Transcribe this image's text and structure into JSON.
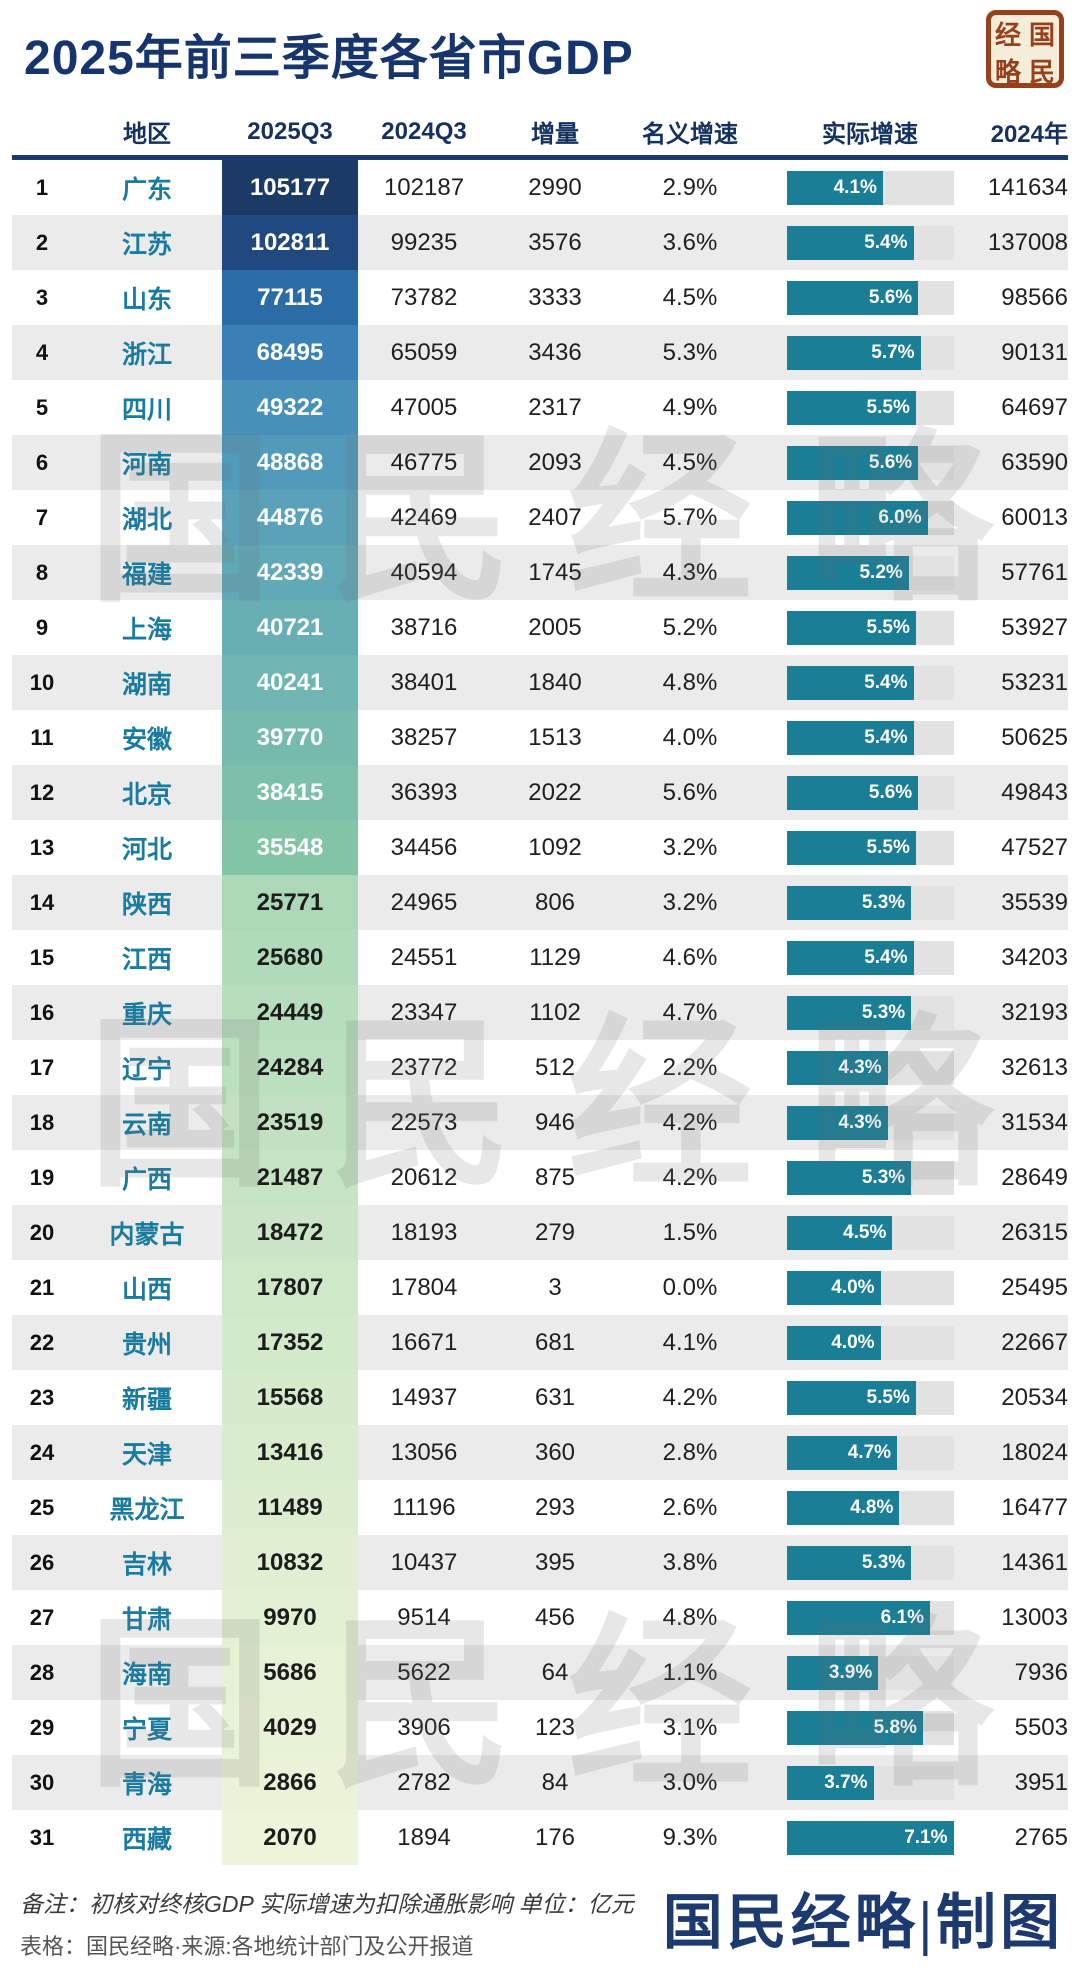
{
  "title": "2025年前三季度各省市GDP",
  "watermark": "国民经略",
  "seal": {
    "chars": [
      "经",
      "国",
      "略",
      "民"
    ]
  },
  "footer": {
    "note1": "备注：初核对终核GDP 实际增速为扣除通胀影响 单位：亿元",
    "note2": "表格：国民经略·来源:各地统计部门及公开报道",
    "credit": "国民经略|制图"
  },
  "colors": {
    "title_navy": "#16356d",
    "header_underline": "#1c3a6e",
    "region_teal": "#1a7ba1",
    "bar_fill": "#1a7e96",
    "bar_track": "#e2e2e2",
    "row_alt": "#ebebeb",
    "seal_red": "#96411c",
    "q3_dark_text_from_rank": 14,
    "q3_colors": [
      "#1c3a66",
      "#20497f",
      "#2c6ca6",
      "#3a80b6",
      "#4790ba",
      "#519abb",
      "#59a2b9",
      "#61a9b7",
      "#68afb4",
      "#6fb5b1",
      "#76baae",
      "#7cbfaa",
      "#83c4a6",
      "#abd9b7",
      "#b0dbba",
      "#b6debc",
      "#bbe0bf",
      "#c0e2c1",
      "#c5e4c4",
      "#cae6c6",
      "#cee8c8",
      "#d2e9ca",
      "#d6ebcc",
      "#daecce",
      "#ddeed0",
      "#e0efd2",
      "#e3f0d3",
      "#e6f1d5",
      "#e8f2d6",
      "#eaf3d8",
      "#ecf4d9"
    ]
  },
  "chart_data": {
    "type": "table",
    "title": "2025年前三季度各省市GDP",
    "unit": "亿元",
    "columns": [
      "地区",
      "2025Q3",
      "2024Q3",
      "增量",
      "名义增速",
      "实际增速",
      "2024年"
    ],
    "real_axis_max": 7.1,
    "rows": [
      {
        "rank": 1,
        "region": "广东",
        "q3_2025": 105177,
        "q3_2024": 102187,
        "delta": 2990,
        "nominal_pct": 2.9,
        "real_pct": 4.1,
        "y2024": 141634
      },
      {
        "rank": 2,
        "region": "江苏",
        "q3_2025": 102811,
        "q3_2024": 99235,
        "delta": 3576,
        "nominal_pct": 3.6,
        "real_pct": 5.4,
        "y2024": 137008
      },
      {
        "rank": 3,
        "region": "山东",
        "q3_2025": 77115,
        "q3_2024": 73782,
        "delta": 3333,
        "nominal_pct": 4.5,
        "real_pct": 5.6,
        "y2024": 98566
      },
      {
        "rank": 4,
        "region": "浙江",
        "q3_2025": 68495,
        "q3_2024": 65059,
        "delta": 3436,
        "nominal_pct": 5.3,
        "real_pct": 5.7,
        "y2024": 90131
      },
      {
        "rank": 5,
        "region": "四川",
        "q3_2025": 49322,
        "q3_2024": 47005,
        "delta": 2317,
        "nominal_pct": 4.9,
        "real_pct": 5.5,
        "y2024": 64697
      },
      {
        "rank": 6,
        "region": "河南",
        "q3_2025": 48868,
        "q3_2024": 46775,
        "delta": 2093,
        "nominal_pct": 4.5,
        "real_pct": 5.6,
        "y2024": 63590
      },
      {
        "rank": 7,
        "region": "湖北",
        "q3_2025": 44876,
        "q3_2024": 42469,
        "delta": 2407,
        "nominal_pct": 5.7,
        "real_pct": 6.0,
        "y2024": 60013
      },
      {
        "rank": 8,
        "region": "福建",
        "q3_2025": 42339,
        "q3_2024": 40594,
        "delta": 1745,
        "nominal_pct": 4.3,
        "real_pct": 5.2,
        "y2024": 57761
      },
      {
        "rank": 9,
        "region": "上海",
        "q3_2025": 40721,
        "q3_2024": 38716,
        "delta": 2005,
        "nominal_pct": 5.2,
        "real_pct": 5.5,
        "y2024": 53927
      },
      {
        "rank": 10,
        "region": "湖南",
        "q3_2025": 40241,
        "q3_2024": 38401,
        "delta": 1840,
        "nominal_pct": 4.8,
        "real_pct": 5.4,
        "y2024": 53231
      },
      {
        "rank": 11,
        "region": "安徽",
        "q3_2025": 39770,
        "q3_2024": 38257,
        "delta": 1513,
        "nominal_pct": 4.0,
        "real_pct": 5.4,
        "y2024": 50625
      },
      {
        "rank": 12,
        "region": "北京",
        "q3_2025": 38415,
        "q3_2024": 36393,
        "delta": 2022,
        "nominal_pct": 5.6,
        "real_pct": 5.6,
        "y2024": 49843
      },
      {
        "rank": 13,
        "region": "河北",
        "q3_2025": 35548,
        "q3_2024": 34456,
        "delta": 1092,
        "nominal_pct": 3.2,
        "real_pct": 5.5,
        "y2024": 47527
      },
      {
        "rank": 14,
        "region": "陕西",
        "q3_2025": 25771,
        "q3_2024": 24965,
        "delta": 806,
        "nominal_pct": 3.2,
        "real_pct": 5.3,
        "y2024": 35539
      },
      {
        "rank": 15,
        "region": "江西",
        "q3_2025": 25680,
        "q3_2024": 24551,
        "delta": 1129,
        "nominal_pct": 4.6,
        "real_pct": 5.4,
        "y2024": 34203
      },
      {
        "rank": 16,
        "region": "重庆",
        "q3_2025": 24449,
        "q3_2024": 23347,
        "delta": 1102,
        "nominal_pct": 4.7,
        "real_pct": 5.3,
        "y2024": 32193
      },
      {
        "rank": 17,
        "region": "辽宁",
        "q3_2025": 24284,
        "q3_2024": 23772,
        "delta": 512,
        "nominal_pct": 2.2,
        "real_pct": 4.3,
        "y2024": 32613
      },
      {
        "rank": 18,
        "region": "云南",
        "q3_2025": 23519,
        "q3_2024": 22573,
        "delta": 946,
        "nominal_pct": 4.2,
        "real_pct": 4.3,
        "y2024": 31534
      },
      {
        "rank": 19,
        "region": "广西",
        "q3_2025": 21487,
        "q3_2024": 20612,
        "delta": 875,
        "nominal_pct": 4.2,
        "real_pct": 5.3,
        "y2024": 28649
      },
      {
        "rank": 20,
        "region": "内蒙古",
        "q3_2025": 18472,
        "q3_2024": 18193,
        "delta": 279,
        "nominal_pct": 1.5,
        "real_pct": 4.5,
        "y2024": 26315
      },
      {
        "rank": 21,
        "region": "山西",
        "q3_2025": 17807,
        "q3_2024": 17804,
        "delta": 3,
        "nominal_pct": 0.0,
        "real_pct": 4.0,
        "y2024": 25495
      },
      {
        "rank": 22,
        "region": "贵州",
        "q3_2025": 17352,
        "q3_2024": 16671,
        "delta": 681,
        "nominal_pct": 4.1,
        "real_pct": 4.0,
        "y2024": 22667
      },
      {
        "rank": 23,
        "region": "新疆",
        "q3_2025": 15568,
        "q3_2024": 14937,
        "delta": 631,
        "nominal_pct": 4.2,
        "real_pct": 5.5,
        "y2024": 20534
      },
      {
        "rank": 24,
        "region": "天津",
        "q3_2025": 13416,
        "q3_2024": 13056,
        "delta": 360,
        "nominal_pct": 2.8,
        "real_pct": 4.7,
        "y2024": 18024
      },
      {
        "rank": 25,
        "region": "黑龙江",
        "q3_2025": 11489,
        "q3_2024": 11196,
        "delta": 293,
        "nominal_pct": 2.6,
        "real_pct": 4.8,
        "y2024": 16477
      },
      {
        "rank": 26,
        "region": "吉林",
        "q3_2025": 10832,
        "q3_2024": 10437,
        "delta": 395,
        "nominal_pct": 3.8,
        "real_pct": 5.3,
        "y2024": 14361
      },
      {
        "rank": 27,
        "region": "甘肃",
        "q3_2025": 9970,
        "q3_2024": 9514,
        "delta": 456,
        "nominal_pct": 4.8,
        "real_pct": 6.1,
        "y2024": 13003
      },
      {
        "rank": 28,
        "region": "海南",
        "q3_2025": 5686,
        "q3_2024": 5622,
        "delta": 64,
        "nominal_pct": 1.1,
        "real_pct": 3.9,
        "y2024": 7936
      },
      {
        "rank": 29,
        "region": "宁夏",
        "q3_2025": 4029,
        "q3_2024": 3906,
        "delta": 123,
        "nominal_pct": 3.1,
        "real_pct": 5.8,
        "y2024": 5503
      },
      {
        "rank": 30,
        "region": "青海",
        "q3_2025": 2866,
        "q3_2024": 2782,
        "delta": 84,
        "nominal_pct": 3.0,
        "real_pct": 3.7,
        "y2024": 3951
      },
      {
        "rank": 31,
        "region": "西藏",
        "q3_2025": 2070,
        "q3_2024": 1894,
        "delta": 176,
        "nominal_pct": 9.3,
        "real_pct": 7.1,
        "y2024": 2765
      }
    ]
  }
}
